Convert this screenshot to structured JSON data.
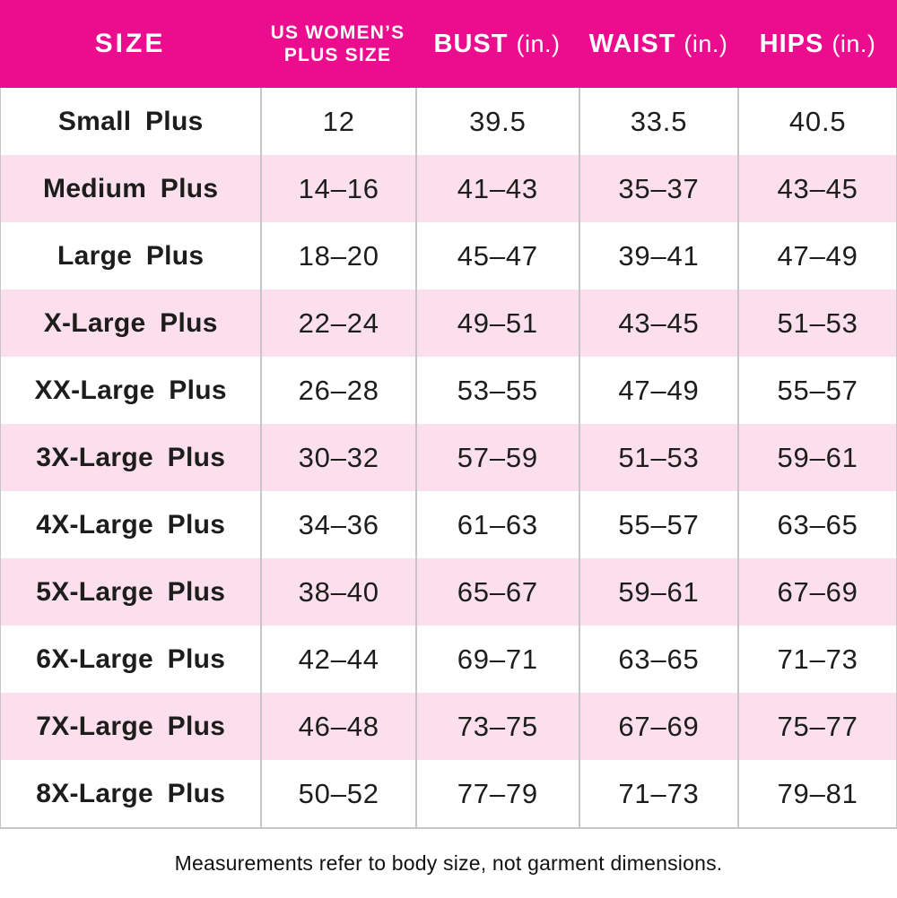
{
  "header": {
    "size_label": "SIZE",
    "plus_size_line1": "US WOMEN’S",
    "plus_size_line2": "PLUS SIZE",
    "bust_label": "BUST",
    "waist_label": "WAIST",
    "hips_label": "HIPS",
    "unit_suffix": "(in.)"
  },
  "table": {
    "column_keys": [
      "size",
      "us-plus-size",
      "bust",
      "waist",
      "hips"
    ],
    "rows": [
      [
        "Small Plus",
        "12",
        "39.5",
        "33.5",
        "40.5"
      ],
      [
        "Medium Plus",
        "14–16",
        "41–43",
        "35–37",
        "43–45"
      ],
      [
        "Large Plus",
        "18–20",
        "45–47",
        "39–41",
        "47–49"
      ],
      [
        "X-Large Plus",
        "22–24",
        "49–51",
        "43–45",
        "51–53"
      ],
      [
        "XX-Large Plus",
        "26–28",
        "53–55",
        "47–49",
        "55–57"
      ],
      [
        "3X-Large Plus",
        "30–32",
        "57–59",
        "51–53",
        "59–61"
      ],
      [
        "4X-Large Plus",
        "34–36",
        "61–63",
        "55–57",
        "63–65"
      ],
      [
        "5X-Large Plus",
        "38–40",
        "65–67",
        "59–61",
        "67–69"
      ],
      [
        "6X-Large Plus",
        "42–44",
        "69–71",
        "63–65",
        "71–73"
      ],
      [
        "7X-Large Plus",
        "46–48",
        "73–75",
        "67–69",
        "75–77"
      ],
      [
        "8X-Large Plus",
        "50–52",
        "77–79",
        "71–73",
        "79–81"
      ]
    ]
  },
  "footer_note": "Measurements refer to body size, not garment dimensions.",
  "colors": {
    "header_bg": "#ec0c8e",
    "row_alt_bg": "#fbdfec",
    "border": "#c6c6c6",
    "text": "#1d1d1b",
    "header_text": "#ffffff"
  }
}
